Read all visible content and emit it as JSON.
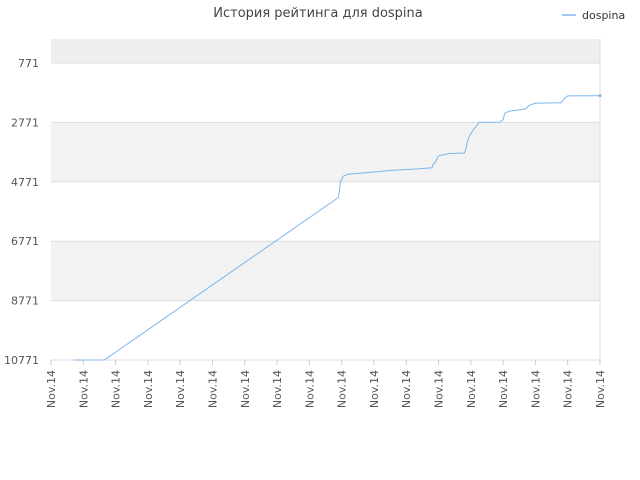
{
  "chart_data": {
    "type": "line",
    "title": "История рейтинга для dospina",
    "xlabel": "",
    "ylabel": "",
    "y_inverted": true,
    "ylim": [
      10771,
      0
    ],
    "y_ticks": [
      771,
      2771,
      4771,
      6771,
      8771,
      10771
    ],
    "y_tick_labels": [
      "771",
      "2771",
      "4771",
      "6771",
      "8771",
      "10771"
    ],
    "x_range": [
      0,
      17
    ],
    "x_tick_labels": [
      "Nov.14",
      "Nov.14",
      "Nov.14",
      "Nov.14",
      "Nov.14",
      "Nov.14",
      "Nov.14",
      "Nov.14",
      "Nov.14",
      "Nov.14",
      "Nov.14",
      "Nov.14",
      "Nov.14",
      "Nov.14",
      "Nov.14",
      "Nov.14",
      "Nov.14",
      "Nov.14"
    ],
    "grid": true,
    "alternating_bands": true,
    "legend_position": "top-right",
    "colors": {
      "series": "#7cb5ec",
      "band": "#f2f2f2",
      "top_band": "#eeeeee",
      "grid": "#dddddd"
    },
    "series": [
      {
        "name": "dospina",
        "x": [
          0.7,
          1.65,
          8.9,
          8.93,
          8.96,
          9.05,
          9.2,
          10,
          10.6,
          11.3,
          11.8,
          11.82,
          11.9,
          12.0,
          12.3,
          12.8,
          12.85,
          12.9,
          12.95,
          13.1,
          13.2,
          13.25,
          13.3,
          13.9,
          14.0,
          14.05,
          14.2,
          14.7,
          14.8,
          15.0,
          15.1,
          15.8,
          15.9,
          16.0,
          17.0
        ],
        "y": [
          10771,
          10771,
          5300,
          5050,
          4771,
          4581,
          4520,
          4440,
          4380,
          4340,
          4300,
          4200,
          4100,
          3900,
          3820,
          3800,
          3650,
          3400,
          3250,
          2980,
          2870,
          2770,
          2771,
          2760,
          2680,
          2460,
          2390,
          2320,
          2200,
          2120,
          2120,
          2110,
          1960,
          1880,
          1871
        ]
      }
    ]
  }
}
